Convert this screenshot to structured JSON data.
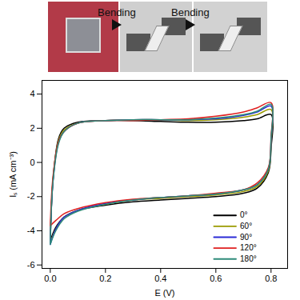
{
  "chart_data": {
    "type": "line",
    "annotations": [
      "Bending",
      "Bending"
    ],
    "x_label": "E (V)",
    "y_label": "Iₛ (mA cm⁻³)",
    "xlim": [
      -0.03,
      0.86
    ],
    "ylim": [
      -6.2,
      4.8
    ],
    "xticks": [
      {
        "value": 0,
        "label": "0.0"
      },
      {
        "value": 0.2,
        "label": "0.2"
      },
      {
        "value": 0.4,
        "label": "0.4"
      },
      {
        "value": 0.6,
        "label": "0.6"
      },
      {
        "value": 0.8,
        "label": "0.8"
      }
    ],
    "yticks": [
      -6,
      -4,
      -2,
      0,
      2,
      4
    ],
    "legend": "bottom-right",
    "x": [
      0,
      0.01,
      0.03,
      0.05,
      0.1,
      0.2,
      0.3,
      0.4,
      0.5,
      0.6,
      0.7,
      0.75,
      0.8,
      0.8,
      0.79,
      0.75,
      0.7,
      0.6,
      0.5,
      0.4,
      0.3,
      0.2,
      0.1,
      0.05,
      0.02,
      0
    ],
    "series": [
      {
        "name": "0°",
        "color": "#000000",
        "values": [
          -4.6,
          -1.0,
          1.4,
          2.0,
          2.35,
          2.45,
          2.45,
          2.4,
          2.35,
          2.35,
          2.45,
          2.55,
          2.8,
          0.8,
          -0.6,
          -1.5,
          -1.8,
          -2.0,
          -2.1,
          -2.2,
          -2.3,
          -2.5,
          -2.8,
          -3.2,
          -3.8,
          -4.6
        ]
      },
      {
        "name": "60°",
        "color": "#9a9a00",
        "values": [
          -4.7,
          -1.0,
          1.3,
          1.9,
          2.3,
          2.45,
          2.5,
          2.5,
          2.45,
          2.5,
          2.65,
          2.8,
          3.1,
          1.2,
          -0.5,
          -1.4,
          -1.7,
          -1.9,
          -2.0,
          -2.1,
          -2.2,
          -2.45,
          -2.8,
          -3.2,
          -3.9,
          -4.7
        ]
      },
      {
        "name": "90°",
        "color": "#2b2bd6",
        "values": [
          -4.8,
          -1.1,
          1.2,
          1.8,
          2.3,
          2.45,
          2.5,
          2.5,
          2.5,
          2.55,
          2.75,
          2.95,
          3.3,
          1.3,
          -0.4,
          -1.3,
          -1.6,
          -1.85,
          -1.95,
          -2.05,
          -2.2,
          -2.4,
          -2.8,
          -3.2,
          -3.9,
          -4.8
        ]
      },
      {
        "name": "120°",
        "color": "#e02020",
        "values": [
          -3.7,
          -0.8,
          1.2,
          1.8,
          2.3,
          2.45,
          2.45,
          2.5,
          2.55,
          2.7,
          2.95,
          3.2,
          3.5,
          1.5,
          -0.3,
          -1.2,
          -1.6,
          -1.8,
          -1.95,
          -2.05,
          -2.15,
          -2.35,
          -2.7,
          -3.0,
          -3.4,
          -3.7
        ]
      },
      {
        "name": "180°",
        "color": "#2e8b7a",
        "values": [
          -4.8,
          -1.1,
          1.1,
          1.8,
          2.3,
          2.45,
          2.5,
          2.5,
          2.5,
          2.6,
          2.8,
          3.0,
          3.4,
          1.4,
          -0.4,
          -1.3,
          -1.6,
          -1.85,
          -1.95,
          -2.05,
          -2.2,
          -2.45,
          -2.85,
          -3.3,
          -4.0,
          -4.8
        ]
      }
    ]
  }
}
